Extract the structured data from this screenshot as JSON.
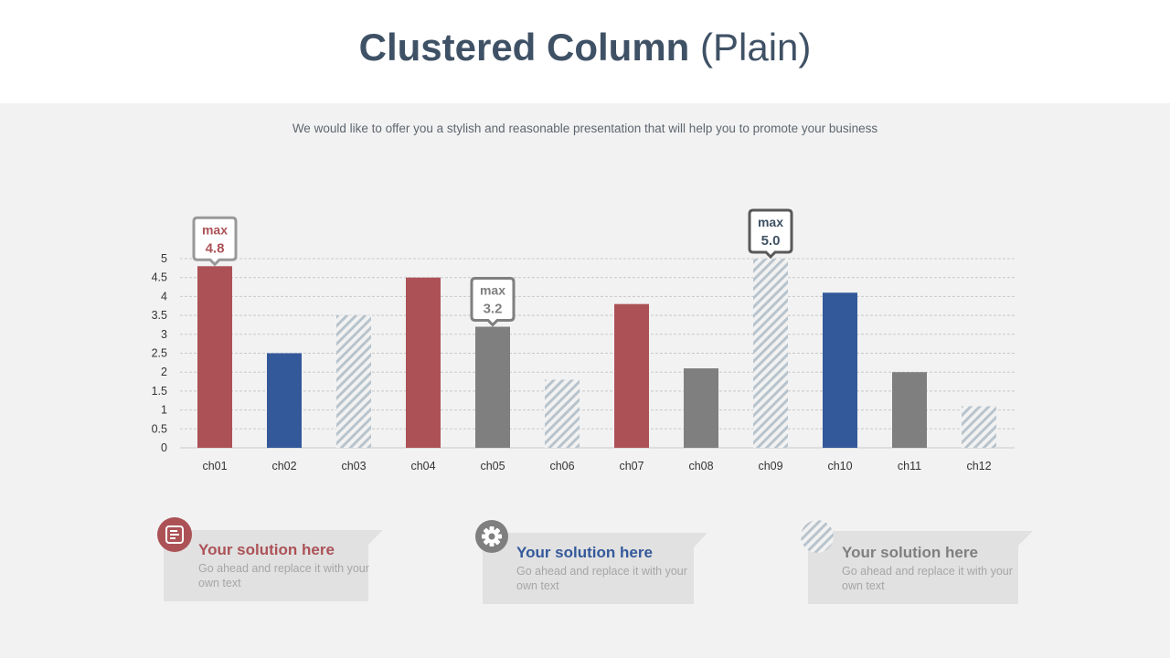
{
  "title": {
    "bold": "Clustered Column",
    "light": "(Plain)"
  },
  "subtitle": "We would like to offer you a stylish and reasonable presentation that will help you to promote your business",
  "colors": {
    "red": "#ac5257",
    "blue": "#34599a",
    "gray": "#7f7f7f",
    "hatch": "#b8c4cd",
    "title": "#3f5165"
  },
  "chart_data": {
    "type": "bar",
    "categories": [
      "ch01",
      "ch02",
      "ch03",
      "ch04",
      "ch05",
      "ch06",
      "ch07",
      "ch08",
      "ch09",
      "ch10",
      "ch11",
      "ch12"
    ],
    "values": [
      4.8,
      2.5,
      3.5,
      4.5,
      3.2,
      1.8,
      3.8,
      2.1,
      5.0,
      4.1,
      2.0,
      1.1
    ],
    "styles": [
      "red",
      "blue",
      "hatch",
      "red",
      "gray",
      "hatch",
      "red",
      "gray",
      "hatch",
      "blue",
      "gray",
      "hatch"
    ],
    "ylim": [
      0,
      5
    ],
    "yticks": [
      "0",
      "0.5",
      "1",
      "1.5",
      "2",
      "2.5",
      "3",
      "3.5",
      "4",
      "4.5",
      "5"
    ],
    "grid": true,
    "annotations": [
      {
        "category": "ch01",
        "label": "max",
        "value": "4.8",
        "color": "red"
      },
      {
        "category": "ch05",
        "label": "max",
        "value": "3.2",
        "color": "gray"
      },
      {
        "category": "ch09",
        "label": "max",
        "value": "5.0",
        "color": "title"
      }
    ]
  },
  "cards": [
    {
      "heading": "Your solution here",
      "body": "Go ahead and replace it with your own text",
      "icon": "document-icon",
      "color": "red"
    },
    {
      "heading": "Your solution here",
      "body": "Go ahead and replace it with your own text",
      "icon": "gear-icon",
      "color": "blue"
    },
    {
      "heading": "Your solution here",
      "body": "Go ahead and replace it with your own text",
      "icon": "hatch-pattern-icon",
      "color": "gray"
    }
  ]
}
